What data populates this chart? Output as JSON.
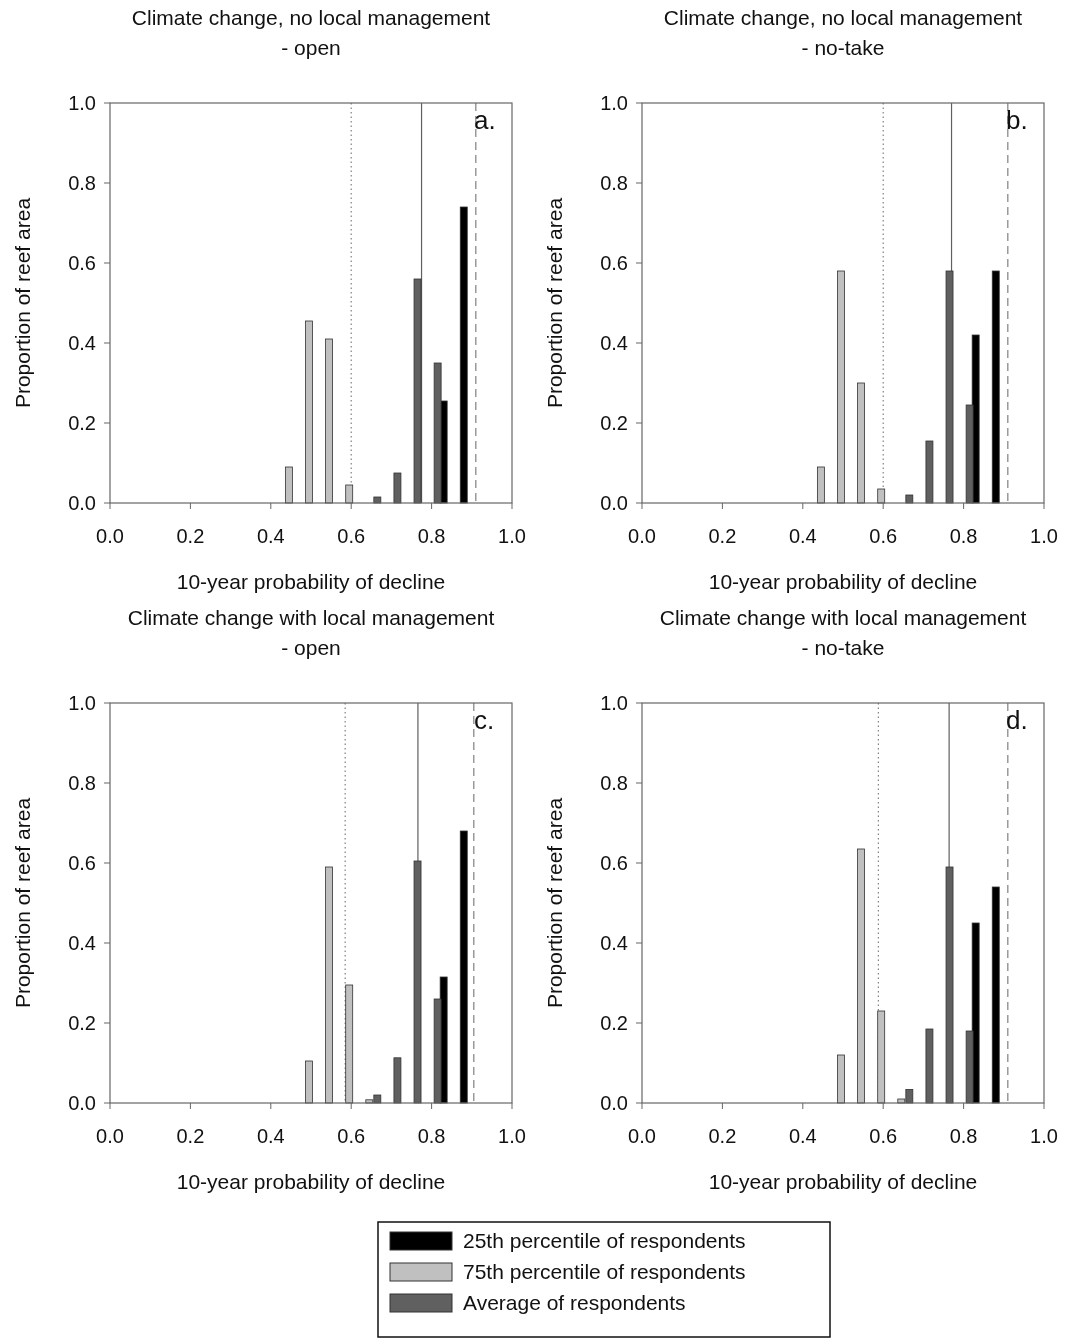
{
  "chart_data": [
    {
      "type": "bar",
      "title": "Climate change, no local management\n- open",
      "xlabel": "10-year probability of decline",
      "ylabel": "Proportion of reef area",
      "xlim": [
        0,
        1
      ],
      "ylim": [
        0,
        1
      ],
      "xticks": [
        {
          "value": 0,
          "label": "0.0"
        },
        {
          "value": 0.2,
          "label": "0.2"
        },
        {
          "value": 0.4,
          "label": "0.4"
        },
        {
          "value": 0.6,
          "label": "0.6"
        },
        {
          "value": 0.8,
          "label": "0.8"
        },
        {
          "value": 1,
          "label": "1.0"
        }
      ],
      "yticks": [
        {
          "value": 0,
          "label": "0.0"
        },
        {
          "value": 0.2,
          "label": "0.2"
        },
        {
          "value": 0.4,
          "label": "0.4"
        },
        {
          "value": 0.6,
          "label": "0.6"
        },
        {
          "value": 0.8,
          "label": "0.8"
        },
        {
          "value": 1,
          "label": "1.0"
        }
      ],
      "series": [
        {
          "color": "#000000",
          "x": [
            0.83,
            0.88
          ],
          "values": [
            0.255,
            0.74
          ]
        },
        {
          "color": "#c0c0c0",
          "x": [
            0.445,
            0.495,
            0.545,
            0.595
          ],
          "values": [
            0.09,
            0.455,
            0.41,
            0.045
          ]
        },
        {
          "color": "#606060",
          "x": [
            0.665,
            0.715,
            0.765,
            0.815
          ],
          "values": [
            0.015,
            0.075,
            0.56,
            0.35
          ]
        }
      ],
      "ref_lines": [
        {
          "axis": "x",
          "value": 0.6,
          "line_style": "dotted",
          "color": "#808080"
        },
        {
          "axis": "x",
          "value": 0.775,
          "line_style": "solid",
          "color": "#606060"
        },
        {
          "axis": "x",
          "value": 0.91,
          "line_style": "dashed",
          "color": "#808080"
        }
      ],
      "annotations": [
        "a."
      ]
    },
    {
      "type": "bar",
      "title": "Climate change, no local management\n- no-take",
      "xlabel": "10-year probability of decline",
      "ylabel": "Proportion of reef area",
      "xlim": [
        0,
        1
      ],
      "ylim": [
        0,
        1
      ],
      "xticks": [
        {
          "value": 0,
          "label": "0.0"
        },
        {
          "value": 0.2,
          "label": "0.2"
        },
        {
          "value": 0.4,
          "label": "0.4"
        },
        {
          "value": 0.6,
          "label": "0.6"
        },
        {
          "value": 0.8,
          "label": "0.8"
        },
        {
          "value": 1,
          "label": "1.0"
        }
      ],
      "yticks": [
        {
          "value": 0,
          "label": "0.0"
        },
        {
          "value": 0.2,
          "label": "0.2"
        },
        {
          "value": 0.4,
          "label": "0.4"
        },
        {
          "value": 0.6,
          "label": "0.6"
        },
        {
          "value": 0.8,
          "label": "0.8"
        },
        {
          "value": 1,
          "label": "1.0"
        }
      ],
      "series": [
        {
          "color": "#000000",
          "x": [
            0.83,
            0.88
          ],
          "values": [
            0.42,
            0.58
          ]
        },
        {
          "color": "#c0c0c0",
          "x": [
            0.445,
            0.495,
            0.545,
            0.595
          ],
          "values": [
            0.09,
            0.58,
            0.3,
            0.035
          ]
        },
        {
          "color": "#606060",
          "x": [
            0.665,
            0.715,
            0.765,
            0.815
          ],
          "values": [
            0.02,
            0.155,
            0.58,
            0.245
          ]
        }
      ],
      "ref_lines": [
        {
          "axis": "x",
          "value": 0.6,
          "line_style": "dotted",
          "color": "#808080"
        },
        {
          "axis": "x",
          "value": 0.77,
          "line_style": "solid",
          "color": "#606060"
        },
        {
          "axis": "x",
          "value": 0.91,
          "line_style": "dashed",
          "color": "#808080"
        }
      ],
      "annotations": [
        "b."
      ]
    },
    {
      "type": "bar",
      "title": "Climate change with local management\n- open",
      "xlabel": "10-year probability of decline",
      "ylabel": "Proportion of reef area",
      "xlim": [
        0,
        1
      ],
      "ylim": [
        0,
        1
      ],
      "xticks": [
        {
          "value": 0,
          "label": "0.0"
        },
        {
          "value": 0.2,
          "label": "0.2"
        },
        {
          "value": 0.4,
          "label": "0.4"
        },
        {
          "value": 0.6,
          "label": "0.6"
        },
        {
          "value": 0.8,
          "label": "0.8"
        },
        {
          "value": 1,
          "label": "1.0"
        }
      ],
      "yticks": [
        {
          "value": 0,
          "label": "0.0"
        },
        {
          "value": 0.2,
          "label": "0.2"
        },
        {
          "value": 0.4,
          "label": "0.4"
        },
        {
          "value": 0.6,
          "label": "0.6"
        },
        {
          "value": 0.8,
          "label": "0.8"
        },
        {
          "value": 1,
          "label": "1.0"
        }
      ],
      "series": [
        {
          "color": "#000000",
          "x": [
            0.83,
            0.88
          ],
          "values": [
            0.315,
            0.68
          ]
        },
        {
          "color": "#c0c0c0",
          "x": [
            0.495,
            0.545,
            0.595,
            0.645
          ],
          "values": [
            0.105,
            0.59,
            0.295,
            0.008
          ]
        },
        {
          "color": "#606060",
          "x": [
            0.665,
            0.715,
            0.765,
            0.815
          ],
          "values": [
            0.02,
            0.113,
            0.605,
            0.26
          ]
        }
      ],
      "ref_lines": [
        {
          "axis": "x",
          "value": 0.585,
          "line_style": "dotted",
          "color": "#808080"
        },
        {
          "axis": "x",
          "value": 0.766,
          "line_style": "solid",
          "color": "#606060"
        },
        {
          "axis": "x",
          "value": 0.905,
          "line_style": "dashed",
          "color": "#808080"
        }
      ],
      "annotations": [
        "c."
      ]
    },
    {
      "type": "bar",
      "title": "Climate change with local management\n- no-take",
      "xlabel": "10-year probability of decline",
      "ylabel": "Proportion of reef area",
      "xlim": [
        0,
        1
      ],
      "ylim": [
        0,
        1
      ],
      "xticks": [
        {
          "value": 0,
          "label": "0.0"
        },
        {
          "value": 0.2,
          "label": "0.2"
        },
        {
          "value": 0.4,
          "label": "0.4"
        },
        {
          "value": 0.6,
          "label": "0.6"
        },
        {
          "value": 0.8,
          "label": "0.8"
        },
        {
          "value": 1,
          "label": "1.0"
        }
      ],
      "yticks": [
        {
          "value": 0,
          "label": "0.0"
        },
        {
          "value": 0.2,
          "label": "0.2"
        },
        {
          "value": 0.4,
          "label": "0.4"
        },
        {
          "value": 0.6,
          "label": "0.6"
        },
        {
          "value": 0.8,
          "label": "0.8"
        },
        {
          "value": 1,
          "label": "1.0"
        }
      ],
      "series": [
        {
          "name": "25th percentile of respondents",
          "color": "#000000",
          "x": [
            0.83,
            0.88
          ],
          "values": [
            0.45,
            0.54
          ]
        },
        {
          "name": "75th percentile of respondents",
          "color": "#c0c0c0",
          "x": [
            0.495,
            0.545,
            0.595,
            0.645
          ],
          "values": [
            0.12,
            0.635,
            0.23,
            0.01
          ]
        },
        {
          "name": "Average of respondents",
          "color": "#606060",
          "x": [
            0.665,
            0.715,
            0.765,
            0.815
          ],
          "values": [
            0.034,
            0.185,
            0.59,
            0.18
          ]
        }
      ],
      "ref_lines": [
        {
          "axis": "x",
          "value": 0.588,
          "line_style": "dotted",
          "color": "#808080"
        },
        {
          "axis": "x",
          "value": 0.764,
          "line_style": "solid",
          "color": "#606060"
        },
        {
          "axis": "x",
          "value": 0.91,
          "line_style": "dashed",
          "color": "#808080"
        }
      ],
      "annotations": [
        "d."
      ],
      "legend": "bottom"
    }
  ]
}
